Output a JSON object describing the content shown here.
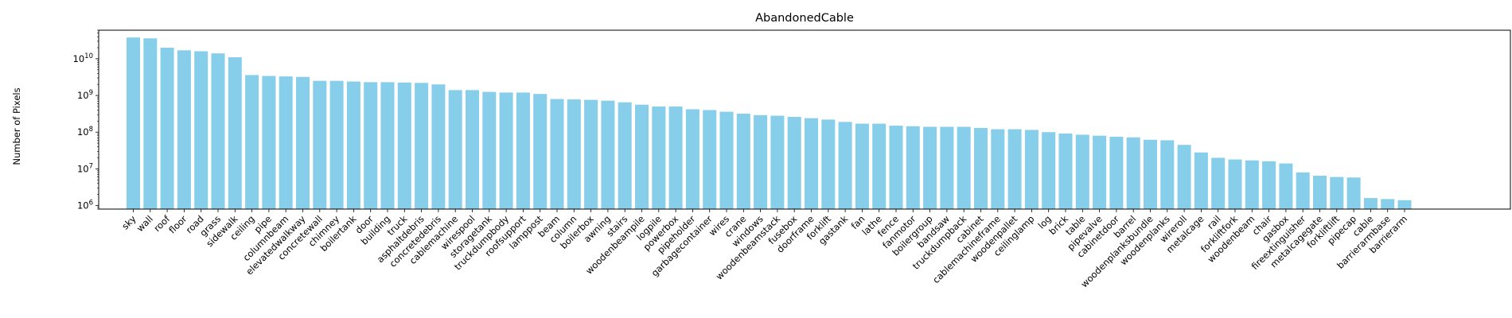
{
  "chart_data": {
    "type": "bar",
    "title": "AbandonedCable",
    "xlabel": "",
    "ylabel": "Number of Pixels",
    "yscale": "log",
    "ylim": [
      800000,
      60000000000
    ],
    "yticks": [
      {
        "value": 1000000,
        "base": "10",
        "exp": "6"
      },
      {
        "value": 10000000,
        "base": "10",
        "exp": "7"
      },
      {
        "value": 100000000,
        "base": "10",
        "exp": "8"
      },
      {
        "value": 1000000000,
        "base": "10",
        "exp": "9"
      },
      {
        "value": 10000000000,
        "base": "10",
        "exp": "10"
      }
    ],
    "bar_color": "#87CEEB",
    "grid": false,
    "categories": [
      "sky",
      "wall",
      "roof",
      "floor",
      "road",
      "grass",
      "sidewalk",
      "ceiling",
      "pipe",
      "columnbeam",
      "elevatedwalkway",
      "concretewall",
      "chimney",
      "boilertank",
      "door",
      "building",
      "truck",
      "asphaltdebris",
      "concretedebris",
      "cablemachine",
      "wirespool",
      "storagetank",
      "truckdumpbody",
      "roofsupport",
      "lamppost",
      "beam",
      "column",
      "boilerbox",
      "awning",
      "stairs",
      "woodenbeampile",
      "logpile",
      "powerbox",
      "pipeholder",
      "garbagecontainer",
      "wires",
      "crane",
      "windows",
      "woodenbeamstack",
      "fusebox",
      "doorframe",
      "forklift",
      "gastank",
      "fan",
      "lathe",
      "fence",
      "fanmotor",
      "boilergroup",
      "bandsaw",
      "truckdumpback",
      "cabinet",
      "cablemachineframe",
      "woodenpallet",
      "ceilinglamp",
      "log",
      "brick",
      "table",
      "pipevalve",
      "cabinetdoor",
      "barrel",
      "woodenplanksbundle",
      "woodenplanks",
      "wireroll",
      "metalcage",
      "rail",
      "forkliftfork",
      "woodenbeam",
      "chair",
      "gasbox",
      "fireextinguisher",
      "metalcagegate",
      "forkliftlift",
      "pipecap",
      "cable",
      "barrierarmbase",
      "barrierarm"
    ],
    "values": [
      38000000000,
      36000000000,
      20000000000,
      17000000000,
      16000000000,
      14000000000,
      11000000000,
      3600000000,
      3400000000,
      3300000000,
      3200000000,
      2500000000,
      2500000000,
      2400000000,
      2300000000,
      2300000000,
      2250000000,
      2200000000,
      2000000000,
      1400000000,
      1400000000,
      1250000000,
      1200000000,
      1200000000,
      1100000000,
      800000000,
      780000000,
      760000000,
      720000000,
      650000000,
      560000000,
      500000000,
      500000000,
      420000000,
      400000000,
      360000000,
      320000000,
      290000000,
      280000000,
      260000000,
      240000000,
      220000000,
      190000000,
      170000000,
      170000000,
      150000000,
      145000000,
      140000000,
      140000000,
      140000000,
      130000000,
      120000000,
      120000000,
      115000000,
      100000000,
      92000000,
      85000000,
      80000000,
      75000000,
      72000000,
      62000000,
      60000000,
      45000000,
      28000000,
      20000000,
      18000000,
      17000000,
      16000000,
      14000000,
      8000000,
      6500000,
      6000000,
      5800000,
      1600000,
      1500000,
      1400000
    ]
  }
}
